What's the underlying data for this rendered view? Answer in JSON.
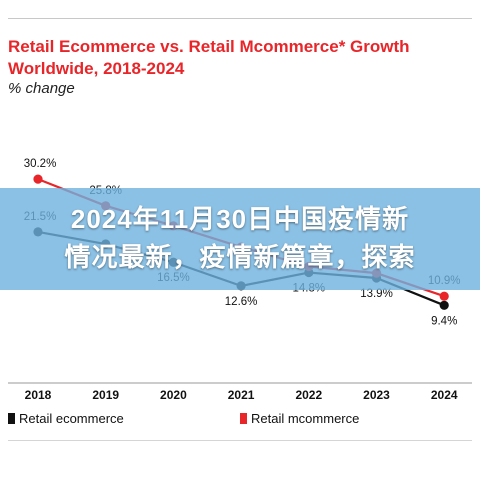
{
  "colors": {
    "ecommerce": "#111111",
    "mcommerce": "#e8262a",
    "title": "#e8262a",
    "overlay_band": "#6eb2de"
  },
  "overlay": {
    "line1": "2024年11月30日中国疫情新",
    "line2": "情况最新，疫情新篇章，探索"
  },
  "chart_data": {
    "type": "line",
    "title_line1": "Retail Ecommerce vs. Retail Mcommerce* Growth",
    "title_line2": "Worldwide, 2018-2024",
    "subtitle": "% change",
    "categories": [
      "2018",
      "2019",
      "2020",
      "2021",
      "2022",
      "2023",
      "2024"
    ],
    "series": [
      {
        "name": "Retail ecommerce",
        "values": [
          21.5,
          19.5,
          16.5,
          12.6,
          14.8,
          13.9,
          9.4
        ],
        "labels": [
          "21.5%",
          "",
          "16.5%",
          "12.6%",
          "14.8%",
          "13.9%",
          "9.4%"
        ]
      },
      {
        "name": "Retail mcommerce",
        "values": [
          30.2,
          25.8,
          22.5,
          19.0,
          15.8,
          14.7,
          10.9
        ],
        "labels": [
          "30.2%",
          "25.8%",
          "",
          "",
          "",
          "",
          "10.9%"
        ]
      }
    ],
    "ylim": [
      5,
      35
    ],
    "grid": false,
    "legend_position": "bottom"
  }
}
